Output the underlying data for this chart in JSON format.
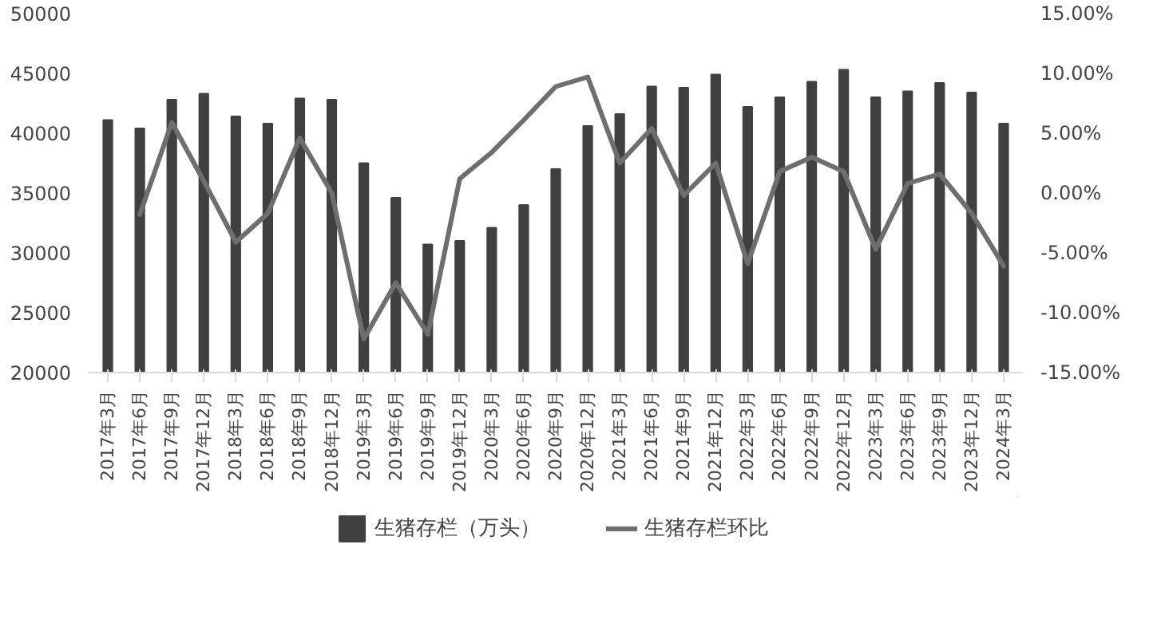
{
  "chart_data": {
    "type": "bar",
    "categories": [
      "2017年3月",
      "2017年6月",
      "2017年9月",
      "2017年12月",
      "2018年3月",
      "2018年6月",
      "2018年9月",
      "2018年12月",
      "2019年3月",
      "2019年6月",
      "2019年9月",
      "2019年12月",
      "2020年3月",
      "2020年6月",
      "2020年9月",
      "2020年12月",
      "2021年3月",
      "2021年6月",
      "2021年9月",
      "2021年12月",
      "2022年3月",
      "2022年6月",
      "2022年9月",
      "2022年12月",
      "2023年3月",
      "2023年6月",
      "2023年9月",
      "2023年12月",
      "2024年3月"
    ],
    "series": [
      {
        "name": "生猪存栏（万头）",
        "color": "#404040",
        "values": [
          41100,
          40400,
          42800,
          43300,
          41400,
          40800,
          42900,
          42800,
          37500,
          34600,
          30700,
          31000,
          32100,
          34000,
          37000,
          40600,
          41600,
          43900,
          43800,
          44900,
          42200,
          43000,
          44300,
          45300,
          43000,
          43500,
          44200,
          43400,
          40800
        ]
      },
      {
        "name": "生猪存栏环比",
        "type": "line",
        "axis": "y2",
        "color": "#6e6e6e",
        "values": [
          null,
          -1.8,
          5.9,
          1.0,
          -4.1,
          -1.7,
          4.6,
          0.0,
          -12.2,
          -7.5,
          -11.8,
          1.2,
          3.4,
          6.1,
          8.9,
          9.7,
          2.5,
          5.4,
          -0.2,
          2.5,
          -5.9,
          1.8,
          3.0,
          1.8,
          -4.7,
          0.8,
          1.6,
          -1.7,
          -6.1
        ]
      }
    ],
    "ylim": [
      20000,
      50000
    ],
    "yticks": [
      20000,
      25000,
      30000,
      35000,
      40000,
      45000,
      50000
    ],
    "y2lim": [
      -15,
      15
    ],
    "y2ticks": [
      {
        "value": 15,
        "label": "15.00%"
      },
      {
        "value": 10,
        "label": "10.00%"
      },
      {
        "value": 5,
        "label": "5.00%"
      },
      {
        "value": 0,
        "label": "0.00%"
      },
      {
        "value": -5,
        "label": "-5.00%"
      },
      {
        "value": -10,
        "label": "-10.00%"
      },
      {
        "value": -15,
        "label": "-15.00%"
      }
    ],
    "grid": false,
    "legend": "bottom"
  }
}
